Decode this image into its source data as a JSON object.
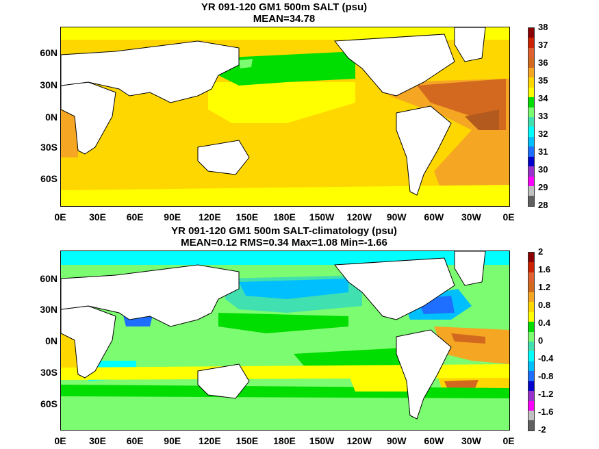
{
  "panel_top": {
    "title_line1": "YR 091-120 GM1 500m SALT (psu)",
    "title_line2": "MEAN=34.78",
    "colorbar": {
      "labels": [
        "38",
        "37",
        "36",
        "35",
        "34",
        "33",
        "32",
        "31",
        "30",
        "29",
        "28"
      ],
      "colors": [
        "#8b0000",
        "#cc2200",
        "#e06030",
        "#d2691e",
        "#f5a623",
        "#ffd700",
        "#ffff00",
        "#00dd00",
        "#7cfc70",
        "#40e0b0",
        "#00ffff",
        "#00bfff",
        "#1e6fff",
        "#0000cd",
        "#9932cc",
        "#ff00ff",
        "#c0c0c0",
        "#606060"
      ]
    }
  },
  "panel_bottom": {
    "title_line1": "YR 091-120 GM1 500m SALT-climatology (psu)",
    "title_line2": "MEAN=0.12   RMS=0.34   Max=1.08   Min=-1.66",
    "colorbar": {
      "labels": [
        "2",
        "1.6",
        "1.2",
        "0.8",
        "0.4",
        "0",
        "-0.4",
        "-0.8",
        "-1.2",
        "-1.6",
        "-2"
      ],
      "colors": [
        "#8b0000",
        "#cc2200",
        "#e06030",
        "#d2691e",
        "#f5a623",
        "#ffd700",
        "#ffff00",
        "#00dd00",
        "#7cfc70",
        "#40e0b0",
        "#00ffff",
        "#00bfff",
        "#1e6fff",
        "#0000cd",
        "#9932cc",
        "#ff00ff",
        "#c0c0c0",
        "#606060"
      ]
    }
  },
  "axes": {
    "x_ticks": [
      "0E",
      "30E",
      "60E",
      "90E",
      "120E",
      "150E",
      "180E",
      "150W",
      "120W",
      "90W",
      "60W",
      "30W",
      "0E"
    ],
    "y_ticks": [
      "60N",
      "30N",
      "0N",
      "30S",
      "60S"
    ]
  }
}
